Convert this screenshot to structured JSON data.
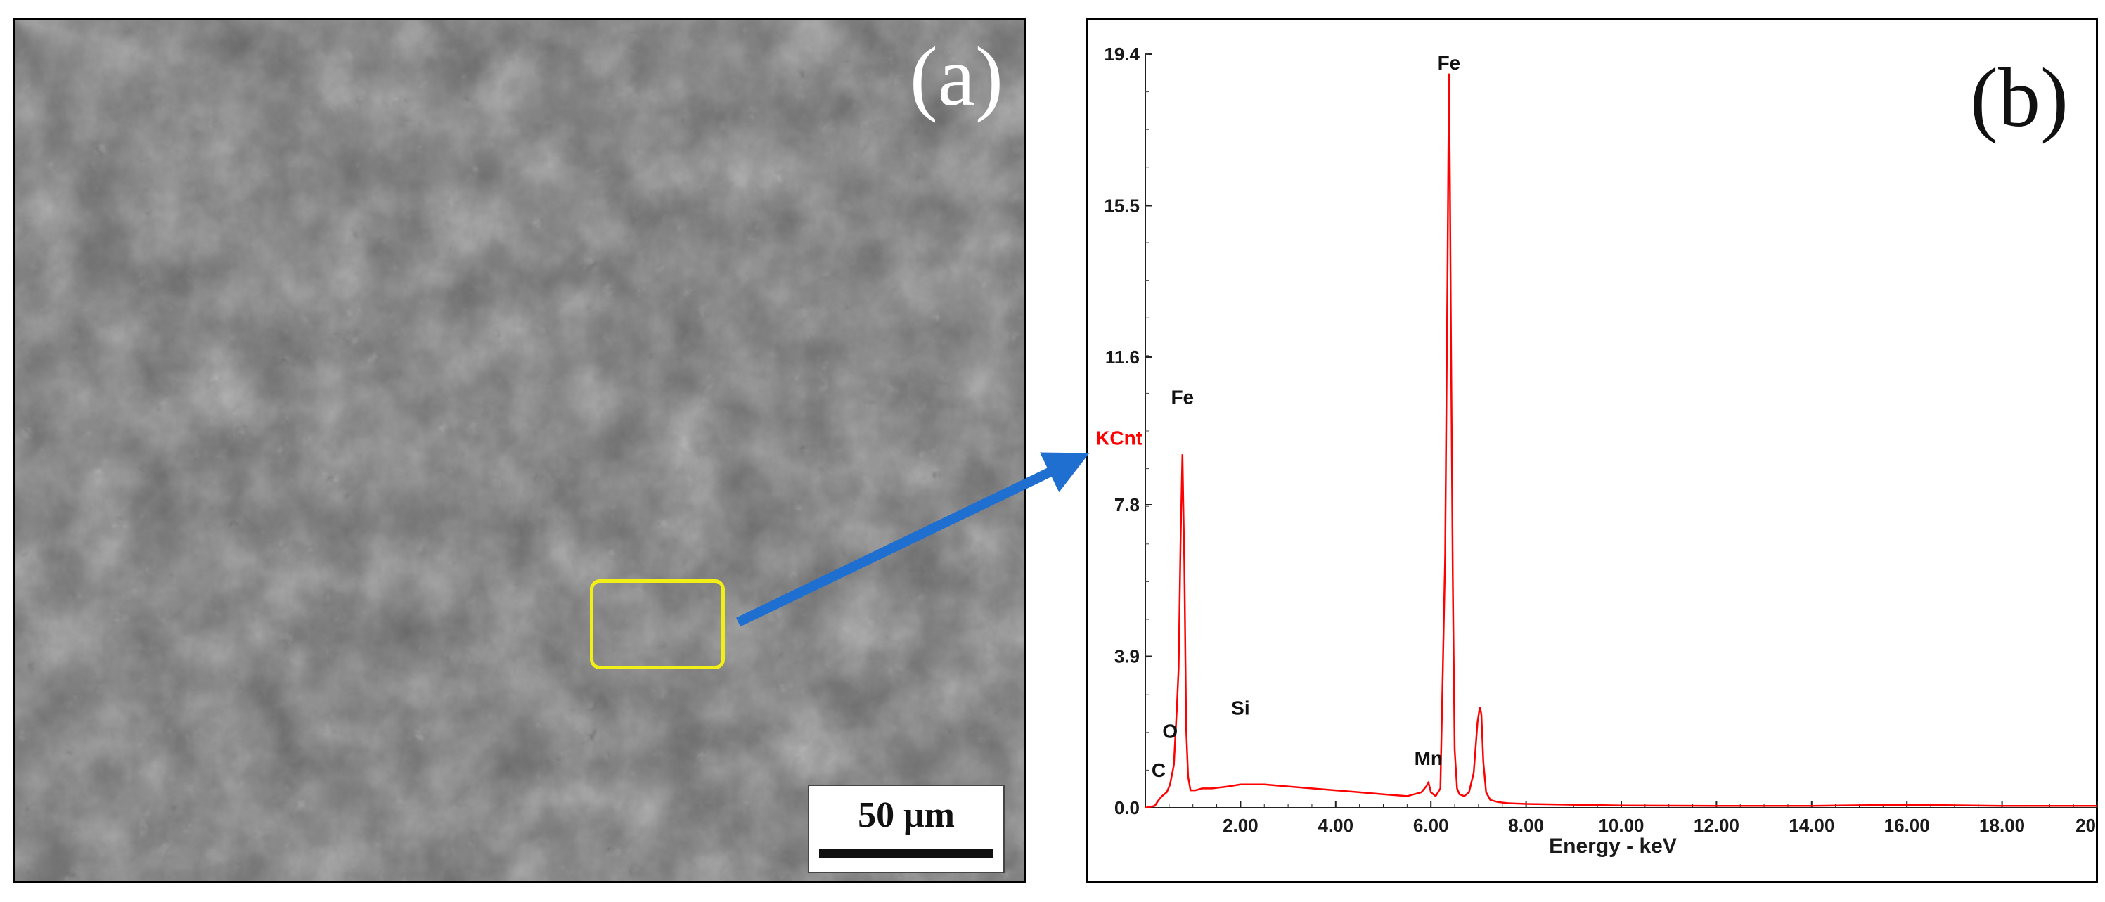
{
  "panel_a": {
    "label": "(a)",
    "scale_bar_label": "50 μm"
  },
  "panel_b": {
    "label": "(b)"
  },
  "colors": {
    "spectrum": "#ff0000",
    "arrow": "#1f6fd1",
    "roi": "#f2ef17",
    "sem_base": "#6a6a6a"
  },
  "chart_data": {
    "type": "line",
    "title": "",
    "xlabel": "Energy - keV",
    "ylabel": "KCnt",
    "xlim": [
      0,
      20
    ],
    "ylim": [
      0,
      19.4
    ],
    "x_ticks": [
      "2.00",
      "4.00",
      "6.00",
      "8.00",
      "10.00",
      "12.00",
      "14.00",
      "16.00",
      "18.00",
      "20"
    ],
    "y_ticks": [
      "0.0",
      "3.9",
      "7.8",
      "11.6",
      "15.5",
      "19.4"
    ],
    "series": [
      {
        "x": [
          0.0,
          0.2,
          0.28,
          0.35,
          0.45,
          0.52,
          0.6,
          0.66,
          0.7,
          0.74,
          0.78,
          0.82,
          0.86,
          0.9,
          0.95,
          1.05,
          1.2,
          1.4,
          1.74,
          2.0,
          2.5,
          3.0,
          3.5,
          4.0,
          4.5,
          5.0,
          5.5,
          5.8,
          5.9,
          5.95,
          6.0,
          6.1,
          6.2,
          6.3,
          6.35,
          6.38,
          6.4,
          6.42,
          6.46,
          6.5,
          6.55,
          6.6,
          6.7,
          6.8,
          6.9,
          6.98,
          7.03,
          7.06,
          7.1,
          7.16,
          7.25,
          7.4,
          7.6,
          8.0,
          9.0,
          10.0,
          12.0,
          14.0,
          16.0,
          18.0,
          20.0
        ],
        "y": [
          0.0,
          0.05,
          0.2,
          0.3,
          0.4,
          0.6,
          1.1,
          2.5,
          3.6,
          6.8,
          9.1,
          6.3,
          2.0,
          0.8,
          0.45,
          0.45,
          0.5,
          0.5,
          0.55,
          0.6,
          0.6,
          0.55,
          0.5,
          0.45,
          0.4,
          0.35,
          0.3,
          0.4,
          0.55,
          0.65,
          0.4,
          0.3,
          0.5,
          6.5,
          14.0,
          18.9,
          16.0,
          12.5,
          6.0,
          1.5,
          0.5,
          0.35,
          0.3,
          0.4,
          0.9,
          2.2,
          2.6,
          2.4,
          1.2,
          0.4,
          0.2,
          0.15,
          0.12,
          0.1,
          0.08,
          0.06,
          0.05,
          0.05,
          0.08,
          0.05,
          0.05
        ]
      }
    ],
    "peaks": [
      {
        "label": "C",
        "x": 0.28,
        "y": 0.8
      },
      {
        "label": "O",
        "x": 0.52,
        "y": 1.8
      },
      {
        "label": "Fe",
        "x": 0.78,
        "y": 10.4
      },
      {
        "label": "Si",
        "x": 2.0,
        "y": 2.4
      },
      {
        "label": "Mn",
        "x": 5.95,
        "y": 1.1
      },
      {
        "label": "Fe",
        "x": 6.38,
        "y": 19.0
      }
    ],
    "grid": false,
    "legend": "none"
  }
}
